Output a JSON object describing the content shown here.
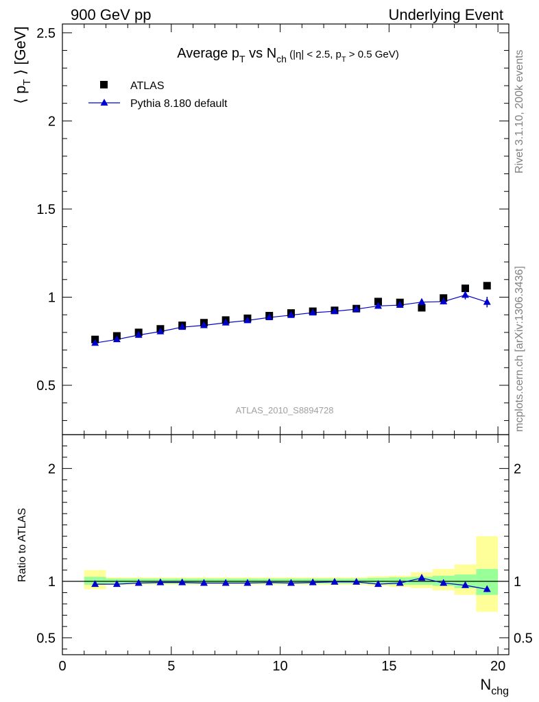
{
  "header": {
    "left": "900 GeV pp",
    "right": "Underlying Event"
  },
  "title": {
    "main": "Average p",
    "main_sub": "T",
    "vs": " vs N",
    "vs_sub": "ch",
    "cut_open": " (|η| < 2.5, p",
    "cut_sub": "T",
    "cut_close": " > 0.5 GeV)"
  },
  "side_labels": {
    "rivet": "Rivet 3.1.10,  200k events",
    "mcplots": "mcplots.cern.ch [arXiv:1306.3436]"
  },
  "analysis_id": "ATLAS_2010_S8894728",
  "axes": {
    "ylabel_main": {
      "open": "⟨ p",
      "sub": "T",
      "close": " ⟩ [GeV]"
    },
    "ylabel_ratio": "Ratio to ATLAS",
    "xlabel": {
      "main": "N",
      "sub": "chg"
    }
  },
  "legend": {
    "data_label": "ATLAS",
    "mc_label": "Pythia 8.180 default"
  },
  "colors": {
    "data": "#000000",
    "mc": "#0000cc",
    "band_inner": "#99ff99",
    "band_outer": "#ffff99"
  },
  "chart_data": [
    {
      "type": "scatter",
      "panel": "main",
      "xlim": [
        0,
        20.5
      ],
      "ylim": [
        0.22,
        2.55
      ],
      "yticks": [
        0.5,
        1,
        1.5,
        2,
        2.5
      ],
      "ytick_labels": [
        "0.5",
        "1",
        "1.5",
        "2",
        "2.5"
      ],
      "series": [
        {
          "name": "ATLAS",
          "marker": "square",
          "x": [
            1.5,
            2.5,
            3.5,
            4.5,
            5.5,
            6.5,
            7.5,
            8.5,
            9.5,
            10.5,
            11.5,
            12.5,
            13.5,
            14.5,
            15.5,
            16.5,
            17.5,
            18.5,
            19.5
          ],
          "y": [
            0.76,
            0.78,
            0.8,
            0.82,
            0.84,
            0.855,
            0.87,
            0.88,
            0.895,
            0.91,
            0.92,
            0.925,
            0.935,
            0.975,
            0.97,
            0.94,
            0.995,
            1.05,
            1.065
          ]
        },
        {
          "name": "Pythia 8.180 default",
          "marker": "triangle",
          "x": [
            1.5,
            2.5,
            3.5,
            4.5,
            5.5,
            6.5,
            7.5,
            8.5,
            9.5,
            10.5,
            11.5,
            12.5,
            13.5,
            14.5,
            15.5,
            16.5,
            17.5,
            18.5,
            19.5
          ],
          "y": [
            0.74,
            0.76,
            0.785,
            0.805,
            0.83,
            0.84,
            0.855,
            0.868,
            0.885,
            0.898,
            0.912,
            0.92,
            0.932,
            0.95,
            0.955,
            0.972,
            0.975,
            1.012,
            0.972
          ],
          "yerr": [
            0,
            0,
            0,
            0,
            0,
            0,
            0,
            0,
            0,
            0,
            0,
            0,
            0,
            0,
            0.01,
            0.018,
            0.016,
            0.025,
            0.03
          ]
        }
      ]
    },
    {
      "type": "line",
      "panel": "ratio",
      "xlim": [
        0,
        20.5
      ],
      "ylim": [
        0.35,
        2.3
      ],
      "xticks": [
        0,
        5,
        10,
        15,
        20
      ],
      "xtick_labels": [
        "0",
        "5",
        "10",
        "15",
        "20"
      ],
      "yticks": [
        0.5,
        1,
        2
      ],
      "ytick_labels": [
        "0.5",
        "1",
        "2"
      ],
      "reference": 1,
      "bands": {
        "x_edges": [
          1,
          2,
          3,
          4,
          5,
          6,
          7,
          8,
          9,
          10,
          11,
          12,
          13,
          14,
          15,
          16,
          17,
          18,
          19,
          20
        ],
        "inner": [
          [
            0.97,
            1.04
          ],
          [
            0.98,
            1.025
          ],
          [
            0.98,
            1.025
          ],
          [
            0.98,
            1.025
          ],
          [
            0.98,
            1.025
          ],
          [
            0.98,
            1.025
          ],
          [
            0.98,
            1.025
          ],
          [
            0.98,
            1.025
          ],
          [
            0.98,
            1.025
          ],
          [
            0.98,
            1.025
          ],
          [
            0.98,
            1.025
          ],
          [
            0.98,
            1.025
          ],
          [
            0.98,
            1.025
          ],
          [
            0.975,
            1.03
          ],
          [
            0.97,
            1.035
          ],
          [
            0.97,
            1.04
          ],
          [
            0.96,
            1.05
          ],
          [
            0.94,
            1.06
          ],
          [
            0.88,
            1.11
          ]
        ],
        "outer": [
          [
            0.93,
            1.1
          ],
          [
            0.97,
            1.035
          ],
          [
            0.97,
            1.035
          ],
          [
            0.97,
            1.035
          ],
          [
            0.97,
            1.035
          ],
          [
            0.97,
            1.035
          ],
          [
            0.97,
            1.035
          ],
          [
            0.97,
            1.035
          ],
          [
            0.97,
            1.035
          ],
          [
            0.97,
            1.035
          ],
          [
            0.97,
            1.035
          ],
          [
            0.97,
            1.035
          ],
          [
            0.97,
            1.035
          ],
          [
            0.96,
            1.045
          ],
          [
            0.95,
            1.05
          ],
          [
            0.94,
            1.08
          ],
          [
            0.92,
            1.11
          ],
          [
            0.88,
            1.15
          ],
          [
            0.73,
            1.4
          ]
        ]
      },
      "series": [
        {
          "name": "Pythia 8.180 default",
          "x": [
            1.5,
            2.5,
            3.5,
            4.5,
            5.5,
            6.5,
            7.5,
            8.5,
            9.5,
            10.5,
            11.5,
            12.5,
            13.5,
            14.5,
            15.5,
            16.5,
            17.5,
            18.5,
            19.5
          ],
          "y": [
            0.975,
            0.975,
            0.985,
            0.99,
            0.99,
            0.985,
            0.985,
            0.985,
            0.99,
            0.985,
            0.99,
            0.995,
            0.995,
            0.975,
            0.985,
            1.03,
            0.985,
            0.965,
            0.93
          ],
          "yerr": [
            0,
            0,
            0,
            0,
            0,
            0,
            0,
            0,
            0,
            0,
            0,
            0,
            0,
            0,
            0.01,
            0.015,
            0.015,
            0.02,
            0.025
          ]
        }
      ]
    }
  ]
}
